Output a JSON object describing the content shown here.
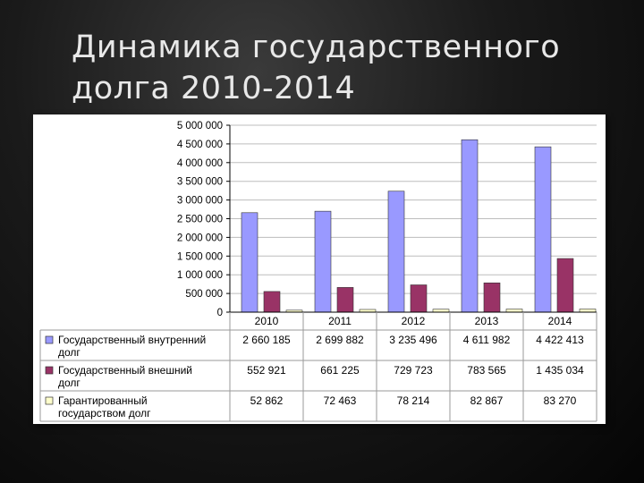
{
  "slide": {
    "title": "Динамика государственного долга 2010-2014"
  },
  "colors": {
    "background": "#111111",
    "panel": "#ffffff",
    "grid": "#bdbdbd"
  },
  "chart_data": {
    "type": "bar",
    "title": "",
    "categories": [
      "2010",
      "2011",
      "2012",
      "2013",
      "2014"
    ],
    "ylim": [
      0,
      5000000
    ],
    "yticks": [
      0,
      500000,
      1000000,
      1500000,
      2000000,
      2500000,
      3000000,
      3500000,
      4000000,
      4500000,
      5000000
    ],
    "ytick_labels": [
      "0",
      "500 000",
      "1 000 000",
      "1 500 000",
      "2 000 000",
      "2 500 000",
      "3 000 000",
      "3 500 000",
      "4 000 000",
      "4 500 000",
      "5 000 000"
    ],
    "grid": true,
    "legend": "table-left",
    "series": [
      {
        "name_lines": [
          "Государственный внутренний",
          "долг"
        ],
        "color": "#9999ff",
        "values": [
          2660185,
          2699882,
          3235496,
          4611982,
          4422413
        ],
        "labels": [
          "2 660 185",
          "2 699 882",
          "3 235 496",
          "4 611 982",
          "4 422 413"
        ]
      },
      {
        "name_lines": [
          "Государственный внешний",
          "долг"
        ],
        "color": "#993366",
        "values": [
          552921,
          661225,
          729723,
          783565,
          1435034
        ],
        "labels": [
          "552 921",
          "661 225",
          "729 723",
          "783 565",
          "1 435 034"
        ]
      },
      {
        "name_lines": [
          "Гарантированный",
          "государством долг"
        ],
        "color": "#ffffcc",
        "values": [
          52862,
          72463,
          78214,
          82867,
          83270
        ],
        "labels": [
          "52 862",
          "72 463",
          "78 214",
          "82 867",
          "83 270"
        ]
      }
    ]
  }
}
